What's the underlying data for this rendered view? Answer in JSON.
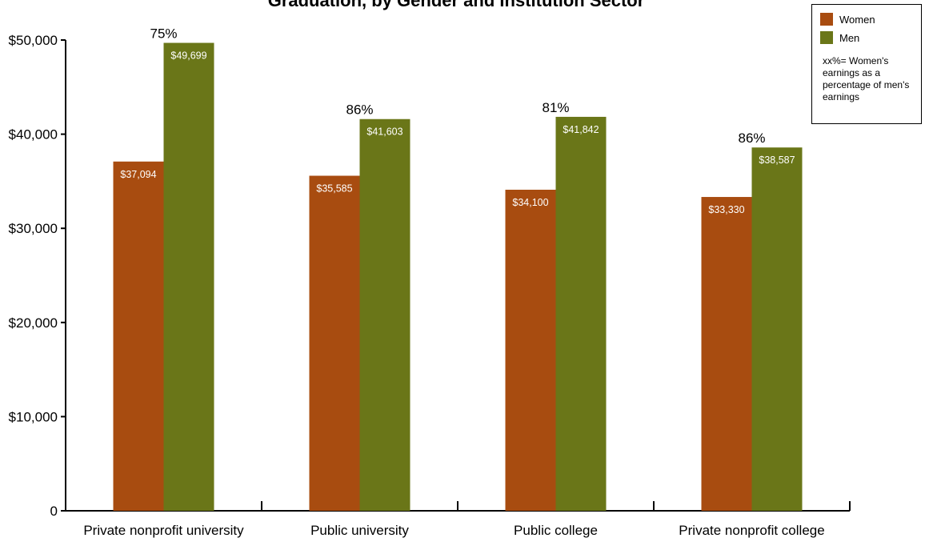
{
  "chart_data": {
    "type": "bar",
    "title": "Graduation, by Gender and Institution Sector",
    "categories": [
      "Private nonprofit university",
      "Public university",
      "Public college",
      "Private nonprofit college"
    ],
    "series": [
      {
        "name": "Women",
        "color": "#a84c10",
        "values": [
          37094,
          35585,
          34100,
          33330
        ],
        "labels": [
          "$37,094",
          "$35,585",
          "$34,100",
          "$33,330"
        ]
      },
      {
        "name": "Men",
        "color": "#6a7618",
        "values": [
          49699,
          41603,
          41842,
          38587
        ],
        "labels": [
          "$49,699",
          "$41,603",
          "$41,842",
          "$38,587"
        ]
      }
    ],
    "percent_labels": [
      "75%",
      "86%",
      "81%",
      "86%"
    ],
    "ylim": [
      0,
      50000
    ],
    "yticks": [
      0,
      10000,
      20000,
      30000,
      40000,
      50000
    ],
    "ytick_labels": [
      "0",
      "$10,000",
      "$20,000",
      "$30,000",
      "$40,000",
      "$50,000"
    ],
    "grid": false,
    "legend_position": "top-right",
    "legend_note": "xx%= Women's earnings as a percentage of men's earnings"
  }
}
